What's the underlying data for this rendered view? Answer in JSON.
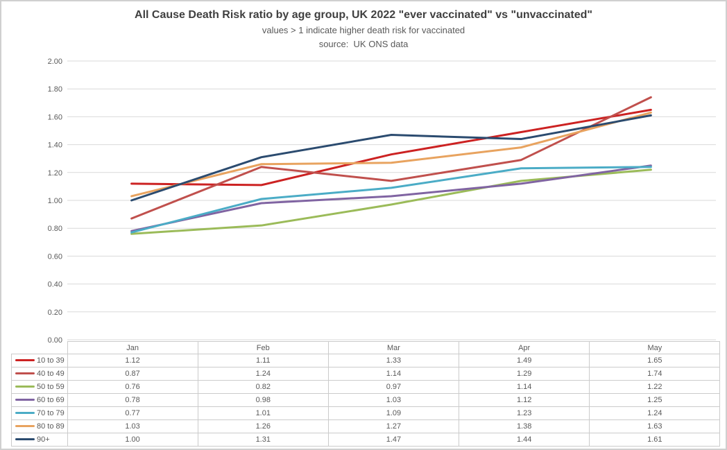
{
  "chart_data": {
    "type": "line",
    "title": "All Cause Death Risk ratio by age group, UK 2022 \"ever vaccinated\" vs \"unvaccinated\"",
    "subtitle": "values > 1 indicate higher death risk for vaccinated",
    "source_note": "source:  UK ONS data",
    "categories": [
      "Jan",
      "Feb",
      "Mar",
      "Apr",
      "May"
    ],
    "series": [
      {
        "name": "10 to 39",
        "color": "#cc2222",
        "values": [
          1.12,
          1.11,
          1.33,
          1.49,
          1.65
        ]
      },
      {
        "name": "40 to 49",
        "color": "#c0504d",
        "values": [
          0.87,
          1.24,
          1.14,
          1.29,
          1.74
        ]
      },
      {
        "name": "50 to 59",
        "color": "#9bbb59",
        "values": [
          0.76,
          0.82,
          0.97,
          1.14,
          1.22
        ]
      },
      {
        "name": "60 to 69",
        "color": "#8064a2",
        "values": [
          0.78,
          0.98,
          1.03,
          1.12,
          1.25
        ]
      },
      {
        "name": "70 to 79",
        "color": "#4bacc6",
        "values": [
          0.77,
          1.01,
          1.09,
          1.23,
          1.24
        ]
      },
      {
        "name": "80 to 89",
        "color": "#e8a35f",
        "values": [
          1.03,
          1.26,
          1.27,
          1.38,
          1.63
        ]
      },
      {
        "name": "90+",
        "color": "#2b4b6f",
        "values": [
          1.0,
          1.31,
          1.47,
          1.44,
          1.61
        ]
      }
    ],
    "ylim": [
      0,
      2
    ],
    "ytick_step": 0.2,
    "ytick_labels": [
      "0.00",
      "0.20",
      "0.40",
      "0.60",
      "0.80",
      "1.00",
      "1.20",
      "1.40",
      "1.60",
      "1.80",
      "2.00"
    ],
    "value_format": "two_decimals",
    "grid": true,
    "vertical_grid": false,
    "markers": false,
    "legend_position": "data-table-left-column",
    "data_table_shown": true,
    "colors": {
      "gridline": "#d9d9d9",
      "table_border": "#cbcbcb",
      "axis_text": "#595959",
      "title_text": "#3f3f3f",
      "background": "#ffffff",
      "outer_border": "#cfcfcf"
    }
  }
}
